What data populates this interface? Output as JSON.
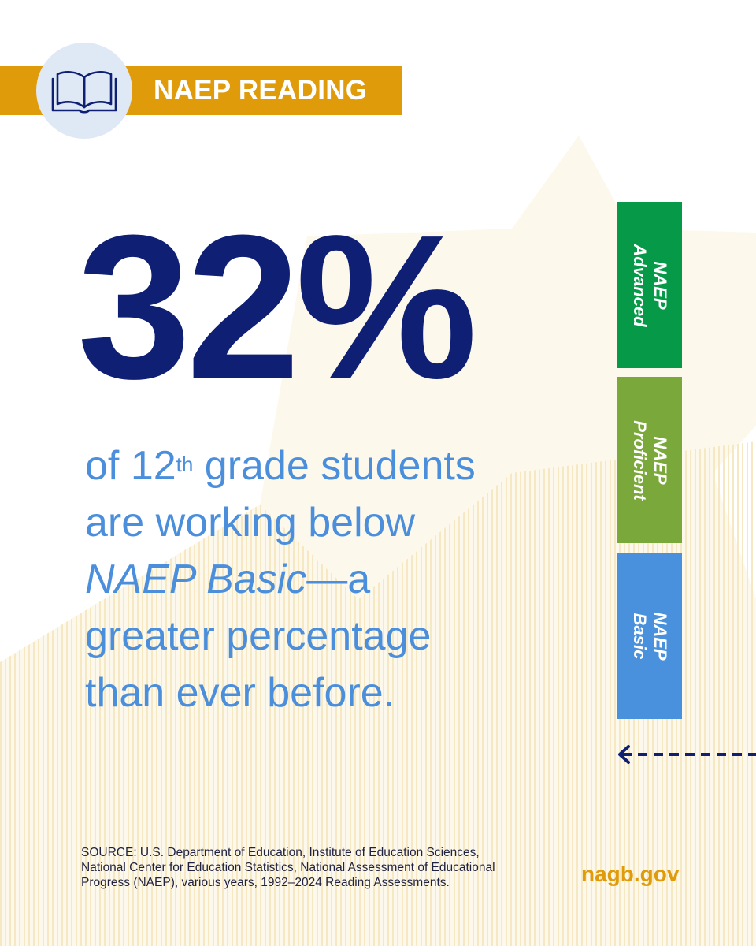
{
  "banner": {
    "title": "NAEP READING",
    "icon": "open-book-icon",
    "color": "#e09b0b"
  },
  "stat": {
    "value": "32%",
    "line1_pre": "of 12",
    "line1_sup": "th",
    "line1_post": " grade students",
    "line2": "are working below",
    "line3_italic": "NAEP Basic",
    "line3_post": "—a",
    "line4": "greater percentage",
    "line5": "than ever before."
  },
  "levels": [
    {
      "line1": "NAEP",
      "line2": "Advanced",
      "color": "#069a48"
    },
    {
      "line1": "NAEP",
      "line2": "Proficient",
      "color": "#7ba83a"
    },
    {
      "line1": "NAEP",
      "line2": "Basic",
      "color": "#4a91dd"
    }
  ],
  "arrow": {
    "icon": "dashed-left-arrow-icon",
    "color": "#0e1f74"
  },
  "source": "SOURCE: U.S. Department of Education, Institute of Education Sciences, National Center for Education Statistics, National Assessment of Educational Progress (NAEP), various years, 1992–2024 Reading Assessments.",
  "site": "nagb.gov",
  "colors": {
    "navy": "#0e1f74",
    "light_blue": "#4b8fdc",
    "gold": "#e09b0b"
  }
}
